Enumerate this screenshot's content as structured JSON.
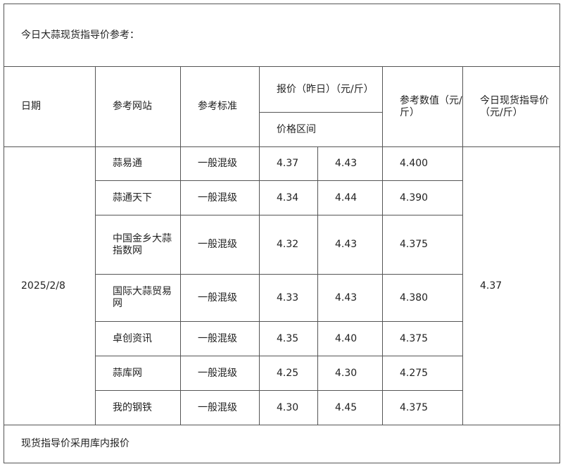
{
  "title": "今日大蒜现货指导价参考：",
  "headers": {
    "date": "日期",
    "site": "参考网站",
    "standard": "参考标准",
    "price": "报价（昨日）（元/斤）",
    "range": "价格区间",
    "ref_value": "参考数值（元/斤）",
    "guide_price": "今日现货指导价（元/斤）"
  },
  "date": "2025/2/8",
  "guide_price": "4.37",
  "rows": [
    {
      "site": "蒜易通",
      "standard": "一般混级",
      "low": "4.37",
      "high": "4.43",
      "ref": "4.400"
    },
    {
      "site": "蒜通天下",
      "standard": "一般混级",
      "low": "4.34",
      "high": "4.44",
      "ref": "4.390"
    },
    {
      "site": "中国金乡大蒜指数网",
      "standard": "一般混级",
      "low": "4.32",
      "high": "4.43",
      "ref": "4.375"
    },
    {
      "site": "国际大蒜贸易网",
      "standard": "一般混级",
      "low": "4.33",
      "high": "4.43",
      "ref": "4.380"
    },
    {
      "site": "卓创资讯",
      "standard": "一般混级",
      "low": "4.35",
      "high": "4.40",
      "ref": "4.375"
    },
    {
      "site": "蒜库网",
      "standard": "一般混级",
      "low": "4.25",
      "high": "4.30",
      "ref": "4.275"
    },
    {
      "site": "我的钢铁",
      "standard": "一般混级",
      "low": "4.30",
      "high": "4.45",
      "ref": "4.375"
    }
  ],
  "footer": "现货指导价采用库内报价"
}
